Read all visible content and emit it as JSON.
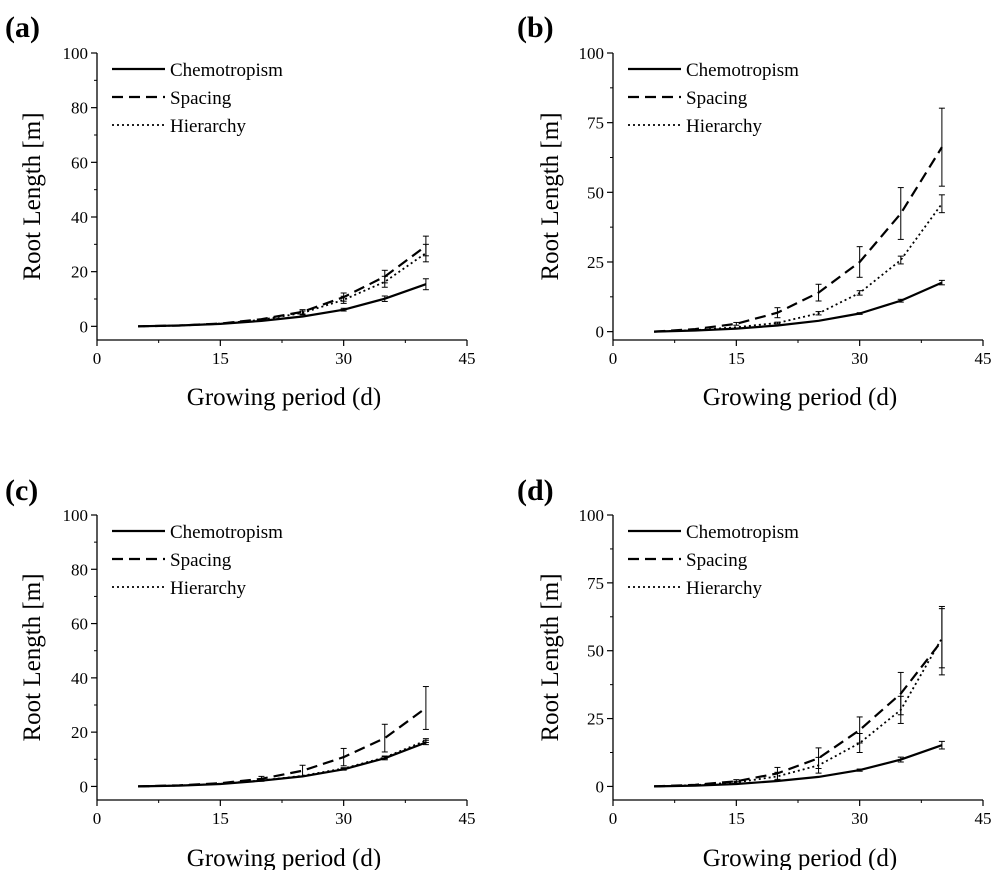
{
  "figure": {
    "xlabel": "Growing period (d)",
    "ylabel": "Root Length [m]"
  },
  "chart_data": [
    {
      "panel": "(a)",
      "type": "line",
      "xlabel": "Growing period (d)",
      "ylabel": "Root Length [m]",
      "xlim": [
        0,
        45
      ],
      "ylim": [
        -5,
        100
      ],
      "xticks": [
        0,
        15,
        30,
        45
      ],
      "yticks": [
        0,
        20,
        40,
        60,
        80,
        100
      ],
      "legend_position": "top-left",
      "x": [
        5,
        10,
        15,
        20,
        25,
        30,
        35,
        40
      ],
      "series": [
        {
          "name": "Chemotropism",
          "style": "solid",
          "values": [
            0,
            0.3,
            0.9,
            2.0,
            3.6,
            6.1,
            10.1,
            15.4
          ],
          "errors": [
            0,
            0,
            0,
            0,
            0,
            0.5,
            1.0,
            2.0
          ]
        },
        {
          "name": "Spacing",
          "style": "dashed",
          "values": [
            0,
            0.3,
            1.0,
            2.6,
            5.3,
            10.7,
            18.2,
            29.4
          ],
          "errors": [
            0,
            0,
            0,
            0,
            0.8,
            1.5,
            2.3,
            3.6
          ]
        },
        {
          "name": "Hierarchy",
          "style": "dotted",
          "values": [
            0,
            0.3,
            1.0,
            2.4,
            4.9,
            9.7,
            16.3,
            26.8
          ],
          "errors": [
            0,
            0,
            0,
            0,
            0.7,
            1.3,
            2.0,
            3.2
          ]
        }
      ]
    },
    {
      "panel": "(b)",
      "type": "line",
      "xlabel": "Growing period (d)",
      "ylabel": "Root Length [m]",
      "xlim": [
        0,
        45
      ],
      "ylim": [
        -3,
        100
      ],
      "xticks": [
        0,
        15,
        30,
        45
      ],
      "yticks": [
        0,
        25,
        50,
        75,
        100
      ],
      "legend_position": "top-left",
      "x": [
        5,
        10,
        15,
        20,
        25,
        30,
        35,
        40
      ],
      "series": [
        {
          "name": "Chemotropism",
          "style": "solid",
          "values": [
            0,
            0.4,
            1.1,
            2.2,
            3.9,
            6.5,
            11.1,
            17.6
          ],
          "errors": [
            0,
            0,
            0,
            0,
            0,
            0.3,
            0.5,
            0.8
          ]
        },
        {
          "name": "Spacing",
          "style": "dashed",
          "values": [
            0,
            0.9,
            2.8,
            6.8,
            14.0,
            25.0,
            42.4,
            66.2
          ],
          "errors": [
            0,
            0,
            0.5,
            1.8,
            3.0,
            5.5,
            9.3,
            14.0
          ]
        },
        {
          "name": "Hierarchy",
          "style": "dotted",
          "values": [
            0,
            0.5,
            1.6,
            3.1,
            6.6,
            13.9,
            25.7,
            45.9
          ],
          "errors": [
            0,
            0,
            0,
            0.3,
            0.6,
            0.8,
            1.4,
            3.2
          ]
        }
      ]
    },
    {
      "panel": "(c)",
      "type": "line",
      "xlabel": "Growing period (d)",
      "ylabel": "Root Length [m]",
      "xlim": [
        0,
        45
      ],
      "ylim": [
        -5,
        100
      ],
      "xticks": [
        0,
        15,
        30,
        45
      ],
      "yticks": [
        0,
        20,
        40,
        60,
        80,
        100
      ],
      "legend_position": "top-left",
      "x": [
        5,
        10,
        15,
        20,
        25,
        30,
        35,
        40
      ],
      "series": [
        {
          "name": "Chemotropism",
          "style": "solid",
          "values": [
            0,
            0.3,
            0.9,
            2.1,
            3.7,
            6.3,
            10.4,
            16.2
          ],
          "errors": [
            0,
            0,
            0,
            0,
            0,
            0.3,
            0.6,
            0.8
          ]
        },
        {
          "name": "Spacing",
          "style": "dashed",
          "values": [
            0,
            0.4,
            1.2,
            2.8,
            5.8,
            10.8,
            17.8,
            28.9
          ],
          "errors": [
            0,
            0,
            0,
            0.9,
            2.0,
            3.2,
            5.1,
            7.9
          ]
        },
        {
          "name": "Hierarchy",
          "style": "dotted",
          "values": [
            0,
            0.3,
            1.0,
            2.2,
            3.9,
            6.6,
            10.7,
            16.9
          ],
          "errors": [
            0,
            0,
            0,
            0,
            0,
            0.3,
            0.5,
            0.7
          ]
        }
      ]
    },
    {
      "panel": "(d)",
      "type": "line",
      "xlabel": "Growing period (d)",
      "ylabel": "Root Length [m]",
      "xlim": [
        0,
        45
      ],
      "ylim": [
        -5,
        100
      ],
      "xticks": [
        0,
        15,
        30,
        45
      ],
      "yticks": [
        0,
        25,
        50,
        75,
        100
      ],
      "legend_position": "top-left",
      "x": [
        5,
        10,
        15,
        20,
        25,
        30,
        35,
        40
      ],
      "series": [
        {
          "name": "Chemotropism",
          "style": "solid",
          "values": [
            0,
            0.3,
            0.9,
            2.0,
            3.5,
            6.0,
            9.9,
            15.2
          ],
          "errors": [
            0,
            0,
            0,
            0,
            0,
            0.4,
            0.9,
            1.4
          ]
        },
        {
          "name": "Spacing",
          "style": "dashed",
          "values": [
            0,
            0.6,
            1.9,
            4.8,
            10.4,
            20.8,
            34.2,
            53.7
          ],
          "errors": [
            0,
            0,
            0.6,
            2.2,
            3.8,
            4.8,
            7.8,
            12.6
          ]
        },
        {
          "name": "Hierarchy",
          "style": "dotted",
          "values": [
            0,
            0.5,
            1.5,
            3.7,
            7.8,
            16.0,
            28.2,
            54.6
          ],
          "errors": [
            0,
            0,
            0.4,
            1.5,
            2.9,
            3.5,
            5.0,
            10.9
          ]
        }
      ]
    }
  ]
}
